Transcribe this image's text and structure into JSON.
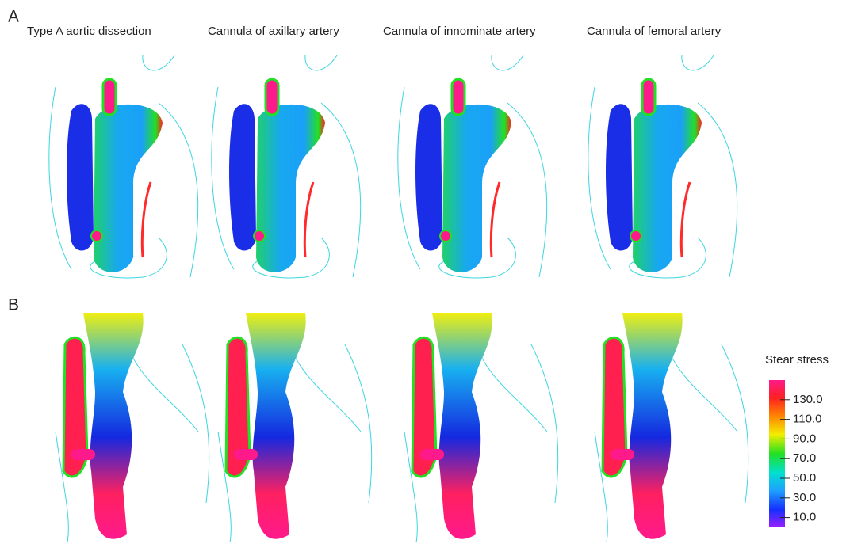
{
  "panel_labels": [
    "A",
    "B"
  ],
  "columns": [
    "Type A aortic dissection",
    "Cannula of axillary artery",
    "Cannula of innominate artery",
    "Cannula of femoral artery"
  ],
  "colorbar": {
    "title": "Stear stress",
    "range": [
      0,
      150
    ],
    "ticks": [
      {
        "value": 130,
        "label": "130.0"
      },
      {
        "value": 110,
        "label": "110.0"
      },
      {
        "value": 90,
        "label": "90.0"
      },
      {
        "value": 70,
        "label": "70.0"
      },
      {
        "value": 50,
        "label": "50.0"
      },
      {
        "value": 30,
        "label": "30.0"
      },
      {
        "value": 10,
        "label": "10.0"
      }
    ]
  }
}
